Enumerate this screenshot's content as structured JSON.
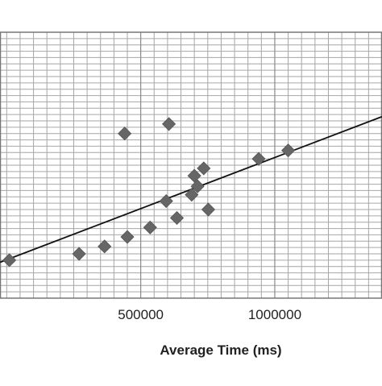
{
  "chart_data": {
    "type": "scatter",
    "title": "",
    "xlabel": "Average Time (ms)",
    "ylabel": "",
    "xlim": [
      -25000,
      1400000
    ],
    "ylim": [
      -36,
      216
    ],
    "x_ticks": [
      500000,
      1000000
    ],
    "x_tick_labels": [
      "500000",
      "1000000"
    ],
    "grid": true,
    "grid_x_step": 50000,
    "grid_y_step": 6,
    "points": [
      {
        "x": 10000,
        "y": 0
      },
      {
        "x": 270000,
        "y": 6
      },
      {
        "x": 365000,
        "y": 13
      },
      {
        "x": 450000,
        "y": 22
      },
      {
        "x": 535000,
        "y": 31
      },
      {
        "x": 440000,
        "y": 120
      },
      {
        "x": 605000,
        "y": 129
      },
      {
        "x": 595000,
        "y": 56
      },
      {
        "x": 635000,
        "y": 40
      },
      {
        "x": 690000,
        "y": 62
      },
      {
        "x": 700000,
        "y": 80
      },
      {
        "x": 712000,
        "y": 70
      },
      {
        "x": 735000,
        "y": 87
      },
      {
        "x": 752000,
        "y": 48
      },
      {
        "x": 940000,
        "y": 96
      },
      {
        "x": 1050000,
        "y": 104
      }
    ],
    "trendline": {
      "x": [
        -25000,
        1400000
      ],
      "y": [
        -2,
        136
      ]
    },
    "colors": {
      "marker": "#666666",
      "line": "#111111",
      "grid": "#a6a6a6",
      "axis": "#777777"
    }
  }
}
